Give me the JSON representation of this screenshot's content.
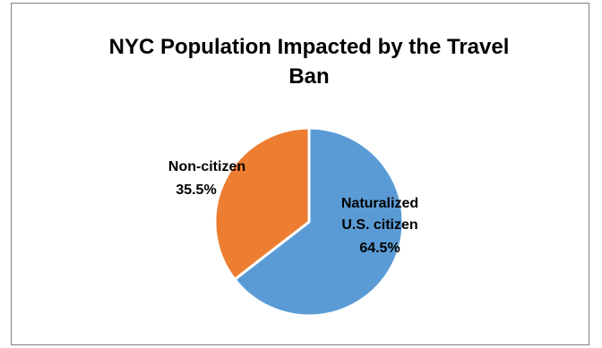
{
  "chart_data": {
    "type": "pie",
    "title_lines": [
      "NYC Population Impacted by the Travel",
      "Ban"
    ],
    "slices": [
      {
        "label_lines": [
          "Naturalized",
          "U.S. citizen"
        ],
        "value": 64.5,
        "display": "64.5%",
        "color": "#5b9bd5"
      },
      {
        "label_lines": [
          "Non-citizen"
        ],
        "value": 35.5,
        "display": "35.5%",
        "color": "#ed7d31"
      }
    ],
    "start_angle": "12 o'clock",
    "direction": "clockwise",
    "legend": "none",
    "slice_separator_color": "#ffffff"
  }
}
